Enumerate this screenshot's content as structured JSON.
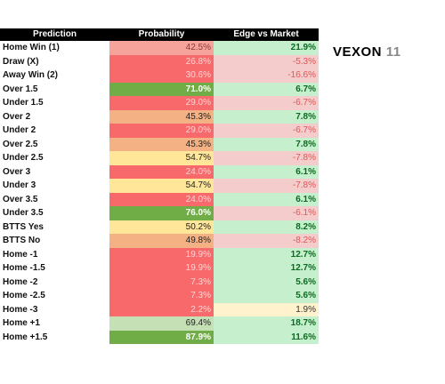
{
  "table": {
    "header": [
      "Prediction",
      "Probability",
      "Edge vs Market"
    ],
    "rows": [
      [
        "Home Win (1)",
        "42.5%",
        "21.9%"
      ],
      [
        "Draw (X)",
        "26.8%",
        "-5.3%"
      ],
      [
        "Away Win (2)",
        "30.6%",
        "-16.6%"
      ],
      [
        "Over 1.5",
        "71.0%",
        "6.7%"
      ],
      [
        "Under 1.5",
        "29.0%",
        "-6.7%"
      ],
      [
        "Over 2",
        "45.3%",
        "7.8%"
      ],
      [
        "Under 2",
        "29.0%",
        "-6.7%"
      ],
      [
        "Over 2.5",
        "45.3%",
        "7.8%"
      ],
      [
        "Under 2.5",
        "54.7%",
        "-7.8%"
      ],
      [
        "Over 3",
        "24.0%",
        "6.1%"
      ],
      [
        "Under 3",
        "54.7%",
        "-7.8%"
      ],
      [
        "Over 3.5",
        "24.0%",
        "6.1%"
      ],
      [
        "Under 3.5",
        "76.0%",
        "-6.1%"
      ],
      [
        "BTTS Yes",
        "50.2%",
        "8.2%"
      ],
      [
        "BTTS No",
        "49.8%",
        "-8.2%"
      ],
      [
        "Home -1",
        "19.9%",
        "12.7%"
      ],
      [
        "Home -1.5",
        "19.9%",
        "12.7%"
      ],
      [
        "Home -2",
        "7.3%",
        "5.6%"
      ],
      [
        "Home -2.5",
        "7.3%",
        "5.6%"
      ],
      [
        "Home -3",
        "2.2%",
        "1.9%"
      ],
      [
        "Home +1",
        "69.4%",
        "18.7%"
      ],
      [
        "Home +1.5",
        "87.9%",
        "11.6%"
      ]
    ],
    "probability_colors": [
      "#f6a39c",
      "#f8696b",
      "#f8696b",
      "#70ad47",
      "#f8696b",
      "#f4b183",
      "#f8696b",
      "#f4b183",
      "#ffe699",
      "#f8696b",
      "#ffe699",
      "#f8696b",
      "#70ad47",
      "#ffe699",
      "#f4b183",
      "#f8696b",
      "#f8696b",
      "#f8696b",
      "#f8696b",
      "#f8696b",
      "#c5e0b4",
      "#70ad47"
    ],
    "edge_colors": [
      "#c6efce",
      "#f4cccc",
      "#f4cccc",
      "#c6efce",
      "#f4cccc",
      "#c6efce",
      "#f4cccc",
      "#c6efce",
      "#f4cccc",
      "#c6efce",
      "#f4cccc",
      "#c6efce",
      "#f4cccc",
      "#c6efce",
      "#f4cccc",
      "#c6efce",
      "#c6efce",
      "#c6efce",
      "#c6efce",
      "#fff2cc",
      "#c6efce",
      "#c6efce"
    ]
  },
  "logo": {
    "name": "VEXON",
    "number": "11"
  }
}
